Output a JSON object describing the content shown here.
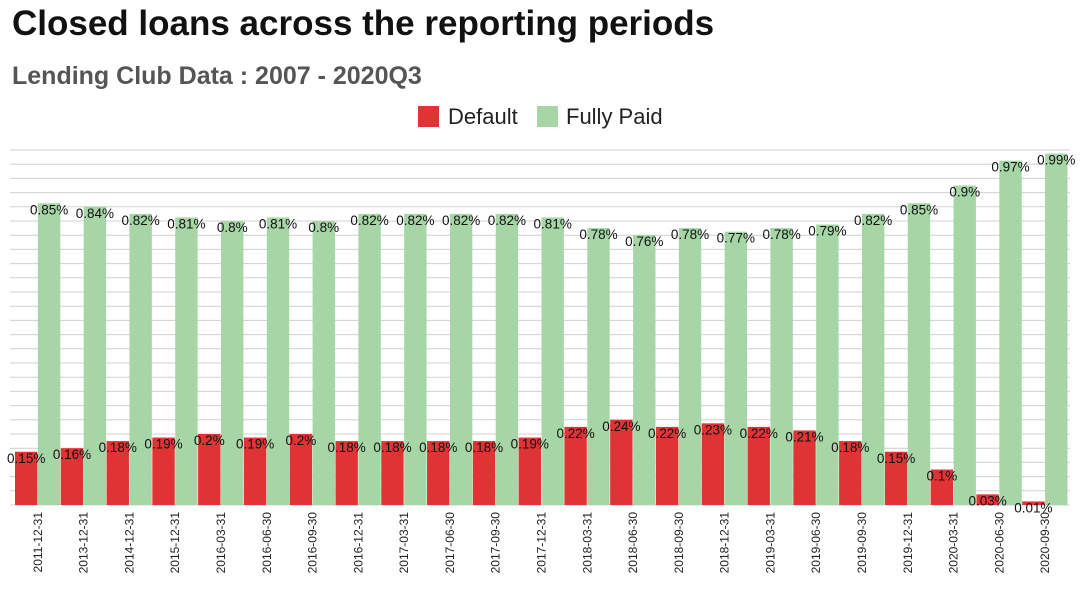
{
  "chart_data": {
    "type": "bar",
    "title": "Closed loans across the reporting periods",
    "subtitle": "Lending Club Data : 2007 - 2020Q3",
    "xlabel": "",
    "ylabel": "",
    "ylim": [
      0,
      1.0
    ],
    "grid": true,
    "legend_position": "top-center",
    "categories": [
      "2011-12-31",
      "2013-12-31",
      "2014-12-31",
      "2015-12-31",
      "2016-03-31",
      "2016-06-30",
      "2016-09-30",
      "2016-12-31",
      "2017-03-31",
      "2017-06-30",
      "2017-09-30",
      "2017-12-31",
      "2018-03-31",
      "2018-06-30",
      "2018-09-30",
      "2018-12-31",
      "2019-03-31",
      "2019-06-30",
      "2019-09-30",
      "2019-12-31",
      "2020-03-31",
      "2020-06-30",
      "2020-09-30"
    ],
    "series": [
      {
        "name": "Default",
        "color": "#e03434",
        "values": [
          0.15,
          0.16,
          0.18,
          0.19,
          0.2,
          0.19,
          0.2,
          0.18,
          0.18,
          0.18,
          0.18,
          0.19,
          0.22,
          0.24,
          0.22,
          0.23,
          0.22,
          0.21,
          0.18,
          0.15,
          0.1,
          0.03,
          0.01
        ],
        "labels": [
          "0.15%",
          "0.16%",
          "0.18%",
          "0.19%",
          "0.2%",
          "0.19%",
          "0.2%",
          "0.18%",
          "0.18%",
          "0.18%",
          "0.18%",
          "0.19%",
          "0.22%",
          "0.24%",
          "0.22%",
          "0.23%",
          "0.22%",
          "0.21%",
          "0.18%",
          "0.15%",
          "0.1%",
          "0.03%",
          "0.01%"
        ]
      },
      {
        "name": "Fully Paid",
        "color": "#a6d5a6",
        "values": [
          0.85,
          0.84,
          0.82,
          0.81,
          0.8,
          0.81,
          0.8,
          0.82,
          0.82,
          0.82,
          0.82,
          0.81,
          0.78,
          0.76,
          0.78,
          0.77,
          0.78,
          0.79,
          0.82,
          0.85,
          0.9,
          0.97,
          0.99
        ],
        "labels": [
          "0.85%",
          "0.84%",
          "0.82%",
          "0.81%",
          "0.8%",
          "0.81%",
          "0.8%",
          "0.82%",
          "0.82%",
          "0.82%",
          "0.82%",
          "0.81%",
          "0.78%",
          "0.76%",
          "0.78%",
          "0.77%",
          "0.78%",
          "0.79%",
          "0.82%",
          "0.85%",
          "0.9%",
          "0.97%",
          "0.99%"
        ]
      }
    ]
  }
}
